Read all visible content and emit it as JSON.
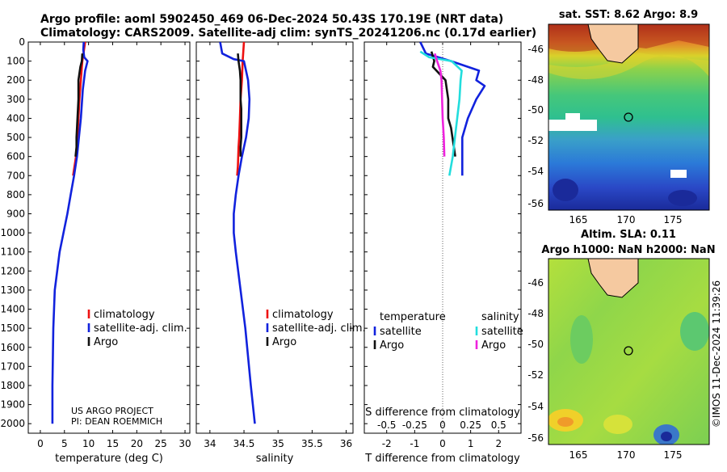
{
  "header": {
    "title_line1": "Argo profile: aoml 5902450_469 06-Dec-2024 50.43S 170.19E (NRT data)",
    "title_line2": "Climatology: CARS2009. Satellite-adj clim: synTS_20241206.nc (0.17d earlier)"
  },
  "colors": {
    "climatology": "#ee1111",
    "satellite": "#1122dd",
    "argo": "#111111",
    "sat_salinity": "#22dddd",
    "argo_salinity": "#ee22dd"
  },
  "chart_data": [
    {
      "type": "line",
      "title": "",
      "xlabel": "temperature (deg C)",
      "ylabel": "",
      "xlim": [
        -2.5,
        31
      ],
      "ylim": [
        2050,
        0
      ],
      "xticks": [
        0,
        5,
        10,
        15,
        20,
        25,
        30
      ],
      "yticks": [
        0,
        100,
        200,
        300,
        400,
        500,
        600,
        700,
        800,
        900,
        1000,
        1100,
        1200,
        1300,
        1400,
        1500,
        1600,
        1700,
        1800,
        1900,
        2000
      ],
      "legend": [
        "climatology",
        "satellite-adj. clim.",
        "Argo"
      ],
      "credit": [
        "US ARGO PROJECT",
        "PI: DEAN ROEMMICH"
      ],
      "series": [
        {
          "name": "climatology",
          "color": "#ee1111",
          "x": [
            9.3,
            9.0,
            8.7,
            8.4,
            8.1,
            7.9,
            7.7,
            7.4,
            7.1,
            6.8
          ],
          "y": [
            0,
            50,
            100,
            200,
            300,
            400,
            500,
            600,
            650,
            700
          ]
        },
        {
          "name": "satellite-adj. clim.",
          "color": "#1122dd",
          "x": [
            9.0,
            8.9,
            9.1,
            9.8,
            9.3,
            8.8,
            8.4,
            8.0,
            7.6,
            7.0,
            6.3,
            5.6,
            4.8,
            4.0,
            3.5,
            3.0,
            2.7,
            2.5,
            2.5
          ],
          "y": [
            0,
            40,
            80,
            100,
            150,
            250,
            400,
            500,
            600,
            700,
            800,
            900,
            1000,
            1100,
            1200,
            1300,
            1500,
            1800,
            2000
          ]
        },
        {
          "name": "Argo",
          "color": "#111111",
          "x": [
            8.7,
            8.6,
            8.3,
            7.9,
            7.9,
            7.7,
            7.5,
            7.5,
            7.3
          ],
          "y": [
            60,
            100,
            130,
            200,
            300,
            400,
            500,
            550,
            600
          ]
        }
      ]
    },
    {
      "type": "line",
      "title": "",
      "xlabel": "salinity",
      "ylabel": "",
      "xlim": [
        33.8,
        36.1
      ],
      "ylim": [
        2050,
        0
      ],
      "xticks": [
        34,
        34.5,
        35,
        35.5,
        36
      ],
      "legend": [
        "climatology",
        "satellite-adj. clim.",
        "Argo"
      ],
      "series": [
        {
          "name": "climatology",
          "color": "#ee1111",
          "x": [
            34.5,
            34.49,
            34.48,
            34.47,
            34.45,
            34.44,
            34.43,
            34.42,
            34.41,
            34.4
          ],
          "y": [
            0,
            50,
            100,
            200,
            300,
            400,
            500,
            550,
            650,
            700
          ]
        },
        {
          "name": "satellite-adj. clim.",
          "color": "#1122dd",
          "x": [
            34.15,
            34.18,
            34.35,
            34.5,
            34.56,
            34.58,
            34.57,
            34.53,
            34.47,
            34.42,
            34.38,
            34.35,
            34.35,
            34.38,
            34.45,
            34.52,
            34.6,
            34.66
          ],
          "y": [
            0,
            60,
            90,
            100,
            200,
            300,
            400,
            500,
            600,
            700,
            800,
            900,
            1000,
            1100,
            1300,
            1500,
            1800,
            2000
          ]
        },
        {
          "name": "Argo",
          "color": "#111111",
          "x": [
            34.41,
            34.42,
            34.44,
            34.45,
            34.45,
            34.46,
            34.46,
            34.46,
            34.45,
            34.45
          ],
          "y": [
            60,
            100,
            150,
            200,
            300,
            350,
            400,
            500,
            550,
            600
          ]
        }
      ]
    },
    {
      "type": "line",
      "title": "",
      "xlabel": "T difference from climatology",
      "ylabel": "",
      "xlim": [
        -2.8,
        2.8
      ],
      "ylim": [
        2050,
        0
      ],
      "xticks": [
        -2,
        -1,
        0,
        1,
        2
      ],
      "top_axis_label": "S difference from climatology",
      "top_xlim": [
        -0.7,
        0.7
      ],
      "top_xticks": [
        -0.5,
        -0.25,
        0,
        0.25,
        0.5
      ],
      "legend_temperature_heading": "temperature",
      "legend_salinity_heading": "salinity",
      "legend_temperature": [
        "satellite",
        "Argo"
      ],
      "legend_salinity": [
        "satellite",
        "Argo"
      ],
      "series": [
        {
          "name": "satellite (T)",
          "color": "#1122dd",
          "axis": "T",
          "x": [
            -0.8,
            -0.6,
            0.3,
            1.3,
            1.2,
            1.5,
            1.2,
            0.9,
            0.7,
            0.7,
            0.7
          ],
          "y": [
            0,
            60,
            100,
            150,
            200,
            230,
            300,
            400,
            500,
            600,
            700
          ]
        },
        {
          "name": "Argo (T)",
          "color": "#111111",
          "axis": "T",
          "x": [
            -0.4,
            -0.3,
            -0.35,
            0.1,
            0.2,
            0.2,
            0.3,
            0.35,
            0.4,
            0.45
          ],
          "y": [
            50,
            100,
            130,
            200,
            300,
            400,
            450,
            500,
            550,
            600
          ]
        },
        {
          "name": "satellite (S)",
          "color": "#22dddd",
          "axis": "S",
          "x": [
            -0.2,
            -0.12,
            0.08,
            0.17,
            0.16,
            0.15,
            0.13,
            0.11,
            0.09,
            0.06
          ],
          "y": [
            50,
            80,
            100,
            150,
            200,
            300,
            400,
            500,
            600,
            700
          ]
        },
        {
          "name": "Argo (S)",
          "color": "#ee22dd",
          "axis": "S",
          "x": [
            -0.07,
            -0.05,
            -0.02,
            -0.01,
            -0.005,
            0.0,
            0.005,
            0.01,
            0.015
          ],
          "y": [
            60,
            100,
            150,
            200,
            300,
            400,
            450,
            500,
            600
          ]
        }
      ]
    }
  ],
  "maps": {
    "sst": {
      "title": "sat. SST: 8.62 Argo: 8.9",
      "xticks": [
        "165",
        "170",
        "175"
      ],
      "yticks": [
        "-46",
        "-48",
        "-50",
        "-52",
        "-54",
        "-56"
      ]
    },
    "sla": {
      "title_line1": "Altim. SLA: 0.11",
      "title_line2": "Argo h1000: NaN h2000: NaN",
      "xticks": [
        "165",
        "170",
        "175"
      ],
      "yticks": [
        "-46",
        "-48",
        "-50",
        "-52",
        "-54",
        "-56"
      ]
    }
  },
  "copyright": "©IMOS 11-Dec-2024 11:39:26"
}
